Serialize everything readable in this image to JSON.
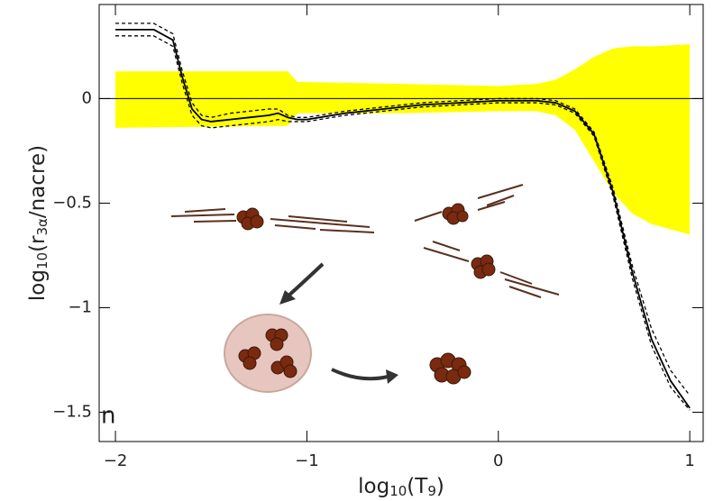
{
  "chart_data": {
    "type": "line",
    "x_label_parts": [
      "log",
      "10",
      "(T",
      "9",
      ")"
    ],
    "y_label_parts": [
      "log",
      "10",
      "(r",
      "3α",
      "/nacre)"
    ],
    "xlim": [
      -2.085,
      1.07
    ],
    "ylim": [
      -1.64,
      0.45
    ],
    "xticks": [
      {
        "value": -2,
        "label": "−2"
      },
      {
        "value": -1,
        "label": "−1"
      },
      0,
      1
    ],
    "yticks": [
      0,
      {
        "value": -0.5,
        "label": "−0.5"
      },
      {
        "value": -1,
        "label": "−1"
      },
      {
        "value": -1.5,
        "label": "−1.5"
      }
    ],
    "reference_line": 0,
    "band": {
      "color": "#ffff00",
      "x": [
        -2,
        -1.1,
        -1.05,
        -0.5,
        0,
        0.2,
        0.3,
        0.4,
        0.5,
        0.6,
        0.7,
        0.8,
        1.0
      ],
      "upper": [
        0.13,
        0.13,
        0.08,
        0.07,
        0.06,
        0.07,
        0.09,
        0.14,
        0.2,
        0.24,
        0.25,
        0.25,
        0.26
      ],
      "lower": [
        -0.14,
        -0.13,
        -0.07,
        -0.07,
        -0.06,
        -0.06,
        -0.08,
        -0.15,
        -0.3,
        -0.45,
        -0.55,
        -0.6,
        -0.65
      ]
    },
    "x": [
      -2,
      -1.8,
      -1.7,
      -1.65,
      -1.6,
      -1.55,
      -1.5,
      -1.4,
      -1.3,
      -1.2,
      -1.15,
      -1.1,
      -1.05,
      -1.0,
      -0.8,
      -0.6,
      -0.4,
      -0.2,
      0,
      0.2,
      0.3,
      0.4,
      0.5,
      0.6,
      0.7,
      0.8,
      0.9,
      1.0
    ],
    "series": [
      {
        "color": "#000000",
        "dashed": false,
        "values": [
          0.33,
          0.33,
          0.28,
          0.1,
          -0.05,
          -0.1,
          -0.11,
          -0.1,
          -0.09,
          -0.08,
          -0.07,
          -0.09,
          -0.1,
          -0.1,
          -0.07,
          -0.05,
          -0.03,
          -0.02,
          -0.01,
          -0.01,
          -0.02,
          -0.06,
          -0.17,
          -0.45,
          -0.83,
          -1.15,
          -1.35,
          -1.48
        ]
      },
      {
        "color": "#000000",
        "dashed": true,
        "values": [
          0.36,
          0.36,
          0.31,
          0.13,
          -0.02,
          -0.08,
          -0.09,
          -0.07,
          -0.06,
          -0.05,
          -0.05,
          -0.08,
          -0.09,
          -0.09,
          -0.06,
          -0.04,
          -0.02,
          -0.01,
          0,
          0,
          -0.01,
          -0.05,
          -0.16,
          -0.43,
          -0.8,
          -1.1,
          -1.3,
          -1.42
        ]
      },
      {
        "color": "#000000",
        "dashed": true,
        "values": [
          0.3,
          0.3,
          0.25,
          0.07,
          -0.08,
          -0.13,
          -0.14,
          -0.13,
          -0.12,
          -0.11,
          -0.1,
          -0.11,
          -0.11,
          -0.11,
          -0.08,
          -0.06,
          -0.04,
          -0.03,
          -0.02,
          -0.02,
          -0.03,
          -0.07,
          -0.18,
          -0.47,
          -0.86,
          -1.18,
          -1.38,
          -1.49
        ]
      }
    ],
    "fragment_text": "n"
  }
}
